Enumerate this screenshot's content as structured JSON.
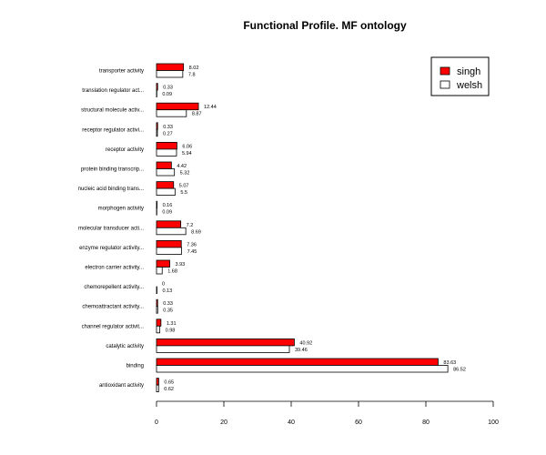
{
  "chart_data": {
    "type": "bar",
    "orientation": "horizontal",
    "title": "Functional Profile. MF ontology",
    "xlabel": "",
    "ylabel": "",
    "xlim": [
      0,
      100
    ],
    "xticks": [
      0,
      20,
      40,
      60,
      80,
      100
    ],
    "grid": false,
    "legend_position": "top-right",
    "categories": [
      "antioxidant activity",
      "binding",
      "catalytic activity",
      "channel regulator activit...",
      "chemoattractant activity...",
      "chemorepellent activity...",
      "electron carrier activity...",
      "enzyme regulator activity...",
      "molecular transducer acti...",
      "morphogen activity",
      "nucleic acid binding trans...",
      "protein binding transcrip...",
      "receptor activity",
      "receptor regulator activi...",
      "structural molecule activ...",
      "translation regulator act...",
      "transporter activity"
    ],
    "series": [
      {
        "name": "singh",
        "color": "#ff0000",
        "values": [
          0.65,
          83.63,
          40.92,
          1.31,
          0.33,
          0,
          3.93,
          7.36,
          7.2,
          0.16,
          5.07,
          4.42,
          6.06,
          0.33,
          12.44,
          0.33,
          8.02
        ],
        "labels": [
          "0.65",
          "83.63",
          "40.92",
          "1.31",
          "0.33",
          "0",
          "3.93",
          "7.36",
          "7.2",
          "0.16",
          "5.07",
          "4.42",
          "6.06",
          "0.33",
          "12.44",
          "0.33",
          "8.02"
        ]
      },
      {
        "name": "welsh",
        "color": "#ffffff",
        "values": [
          0.62,
          86.52,
          39.46,
          0.98,
          0.35,
          0.13,
          1.68,
          7.45,
          8.69,
          0.09,
          5.5,
          5.32,
          5.94,
          0.27,
          8.87,
          0.09,
          7.8
        ],
        "labels": [
          "0.62",
          "86.52",
          "39.46",
          "0.98",
          "0.35",
          "0.13",
          "1.68",
          "7.45",
          "8.69",
          "0.09",
          "5.5",
          "5.32",
          "5.94",
          "0.27",
          "8.87",
          "0.09",
          "7.8"
        ]
      }
    ]
  }
}
